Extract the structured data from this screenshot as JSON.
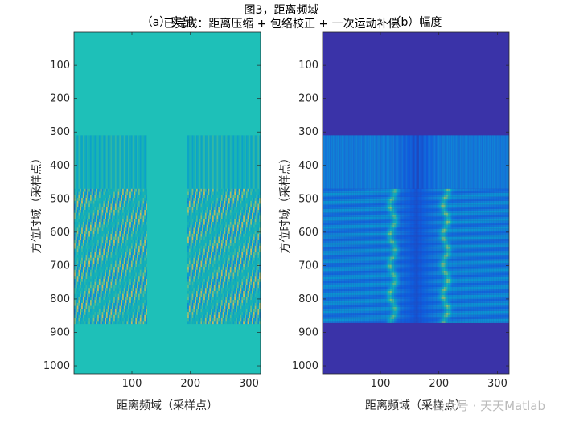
{
  "figure": {
    "title": "图3，距离频域",
    "subtitle": "已完成：距离压缩 + 包络校正 + 一次运动补偿"
  },
  "watermark": "公众号 · 天天Matlab",
  "chart_data": [
    {
      "type": "heatmap",
      "title": "（a）实部",
      "xlabel": "距离频域（采样点）",
      "ylabel": "方位时域（采样点）",
      "xlim": [
        1,
        320
      ],
      "ylim": [
        1,
        1024
      ],
      "y_reversed": true,
      "xticks": [
        100,
        200,
        300
      ],
      "yticks": [
        100,
        200,
        300,
        400,
        500,
        600,
        700,
        800,
        900,
        1000
      ],
      "colormap": "parula",
      "background_color": "#1ec0b8",
      "signal_rows": [
        310,
        870
      ],
      "strong_rows_start": 470,
      "gap_columns": [
        125,
        195
      ]
    },
    {
      "type": "heatmap",
      "title": "（b）幅度",
      "xlabel": "距离频域（采样点）",
      "ylabel": "方位时域（采样点）",
      "xlim": [
        1,
        320
      ],
      "ylim": [
        1,
        1024
      ],
      "y_reversed": true,
      "xticks": [
        100,
        200,
        300
      ],
      "yticks": [
        100,
        200,
        300,
        400,
        500,
        600,
        700,
        800,
        900,
        1000
      ],
      "colormap": "parula",
      "background_color": "#3a33a8",
      "signal_rows": [
        310,
        870
      ],
      "strong_rows_start": 470,
      "gap_columns": [
        125,
        195
      ]
    }
  ]
}
